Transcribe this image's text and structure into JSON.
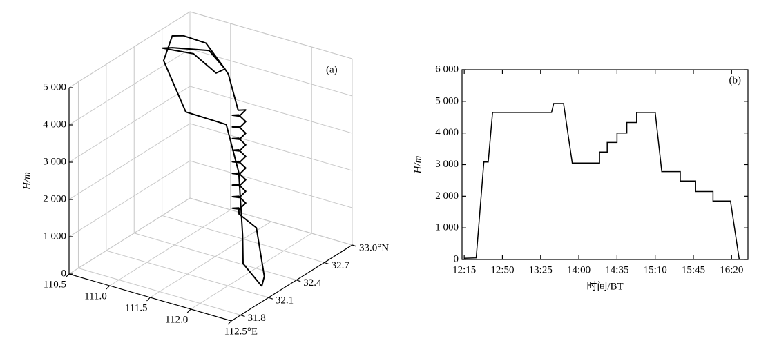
{
  "chart_data": [
    {
      "type": "line3d",
      "annotation": "(a)",
      "zlabel": "H/m",
      "x": [
        112.29,
        111.98,
        111.94,
        112.11,
        111.36,
        110.85,
        110.76,
        110.5,
        110.59,
        110.88,
        111.39,
        111.51,
        111.06,
        110.72,
        110.8,
        111.15,
        111.39,
        111.49,
        111.93,
        111.99,
        111.98,
        111.87,
        111.88,
        111.99,
        111.98,
        111.87,
        111.88,
        111.99,
        111.98,
        111.87,
        111.88,
        111.99,
        111.98,
        111.87,
        111.88,
        111.99,
        111.98,
        111.87,
        111.88,
        111.99,
        111.98,
        111.87,
        111.88,
        111.99,
        111.98,
        111.87,
        111.88,
        111.99,
        111.98,
        111.87,
        111.88,
        111.99,
        111.98,
        111.87,
        111.88,
        111.93,
        111.96,
        112.23,
        112.29
      ],
      "y": [
        32.21,
        32.28,
        32.31,
        32.12,
        32.64,
        32.65,
        32.49,
        32.81,
        32.85,
        32.84,
        32.6,
        32.4,
        32.55,
        32.51,
        32.55,
        32.64,
        32.6,
        32.55,
        32.27,
        32.3,
        32.24,
        32.26,
        32.32,
        32.3,
        32.24,
        32.26,
        32.32,
        32.3,
        32.24,
        32.26,
        32.32,
        32.3,
        32.24,
        32.26,
        32.32,
        32.3,
        32.24,
        32.26,
        32.32,
        32.3,
        32.24,
        32.26,
        32.32,
        32.3,
        32.24,
        32.26,
        32.32,
        32.3,
        32.24,
        32.26,
        32.32,
        32.3,
        32.24,
        32.26,
        32.32,
        32.28,
        32.44,
        32.29,
        32.21
      ],
      "z": [
        0,
        300,
        1000,
        3080,
        3080,
        3080,
        4650,
        4650,
        4650,
        4650,
        4650,
        4930,
        4930,
        4930,
        4930,
        4930,
        4650,
        4650,
        4400,
        4400,
        4322,
        4244,
        4166,
        4088,
        4010,
        3932,
        3854,
        3776,
        3698,
        3620,
        3542,
        3464,
        3386,
        3308,
        3230,
        3152,
        3074,
        2996,
        2918,
        2840,
        2762,
        2684,
        2606,
        2528,
        2450,
        2372,
        2294,
        2216,
        2138,
        2060,
        1982,
        1904,
        1826,
        1748,
        1670,
        1600,
        1000,
        100,
        0
      ],
      "color": "#000000",
      "xlim": [
        110.5,
        112.5
      ],
      "xticks": [
        110.5,
        {
          "value": 111,
          "label": "111.0"
        },
        111.5,
        {
          "value": 112,
          "label": "112.0"
        },
        {
          "value": 112.5,
          "label": "112.5°E"
        }
      ],
      "ylim": [
        31.7,
        33.0
      ],
      "yticks": [
        31.8,
        32.1,
        32.4,
        32.7,
        {
          "value": 33.0,
          "label": "33.0°N"
        }
      ],
      "zlim": [
        0,
        5000
      ],
      "zticks": [
        0,
        {
          "value": 1000,
          "label": "1 000"
        },
        {
          "value": 2000,
          "label": "2 000"
        },
        {
          "value": 3000,
          "label": "3 000"
        },
        {
          "value": 4000,
          "label": "4 000"
        },
        {
          "value": 5000,
          "label": "5 000"
        }
      ],
      "grid": true
    },
    {
      "type": "line",
      "annotation": "(b)",
      "xlabel": "时间/BT",
      "ylabel": "H/m",
      "x": [
        735,
        746,
        753,
        757,
        761,
        815,
        817,
        826,
        834,
        859,
        859,
        866,
        866,
        875,
        875,
        884,
        884,
        893,
        893,
        910,
        916,
        933,
        933,
        947,
        947,
        963,
        963,
        979,
        987
      ],
      "values": [
        40,
        50,
        3080,
        3080,
        4650,
        4650,
        4930,
        4930,
        3050,
        3050,
        3400,
        3400,
        3700,
        3700,
        4000,
        4000,
        4330,
        4330,
        4650,
        4650,
        2780,
        2780,
        2480,
        2480,
        2150,
        2150,
        1850,
        1850,
        0
      ],
      "color": "#000000",
      "xlim": [
        733,
        995
      ],
      "xticks": [
        {
          "value": 735,
          "label": "12:15"
        },
        {
          "value": 770,
          "label": "12:50"
        },
        {
          "value": 805,
          "label": "13:25"
        },
        {
          "value": 840,
          "label": "14:00"
        },
        {
          "value": 875,
          "label": "14:35"
        },
        {
          "value": 910,
          "label": "15:10"
        },
        {
          "value": 945,
          "label": "15:45"
        },
        {
          "value": 980,
          "label": "16:20"
        }
      ],
      "ylim": [
        0,
        6000
      ],
      "yticks": [
        0,
        {
          "value": 1000,
          "label": "1 000"
        },
        {
          "value": 2000,
          "label": "2 000"
        },
        {
          "value": 3000,
          "label": "3 000"
        },
        {
          "value": 4000,
          "label": "4 000"
        },
        {
          "value": 5000,
          "label": "5 000"
        },
        {
          "value": 6000,
          "label": "6 000"
        }
      ]
    }
  ]
}
